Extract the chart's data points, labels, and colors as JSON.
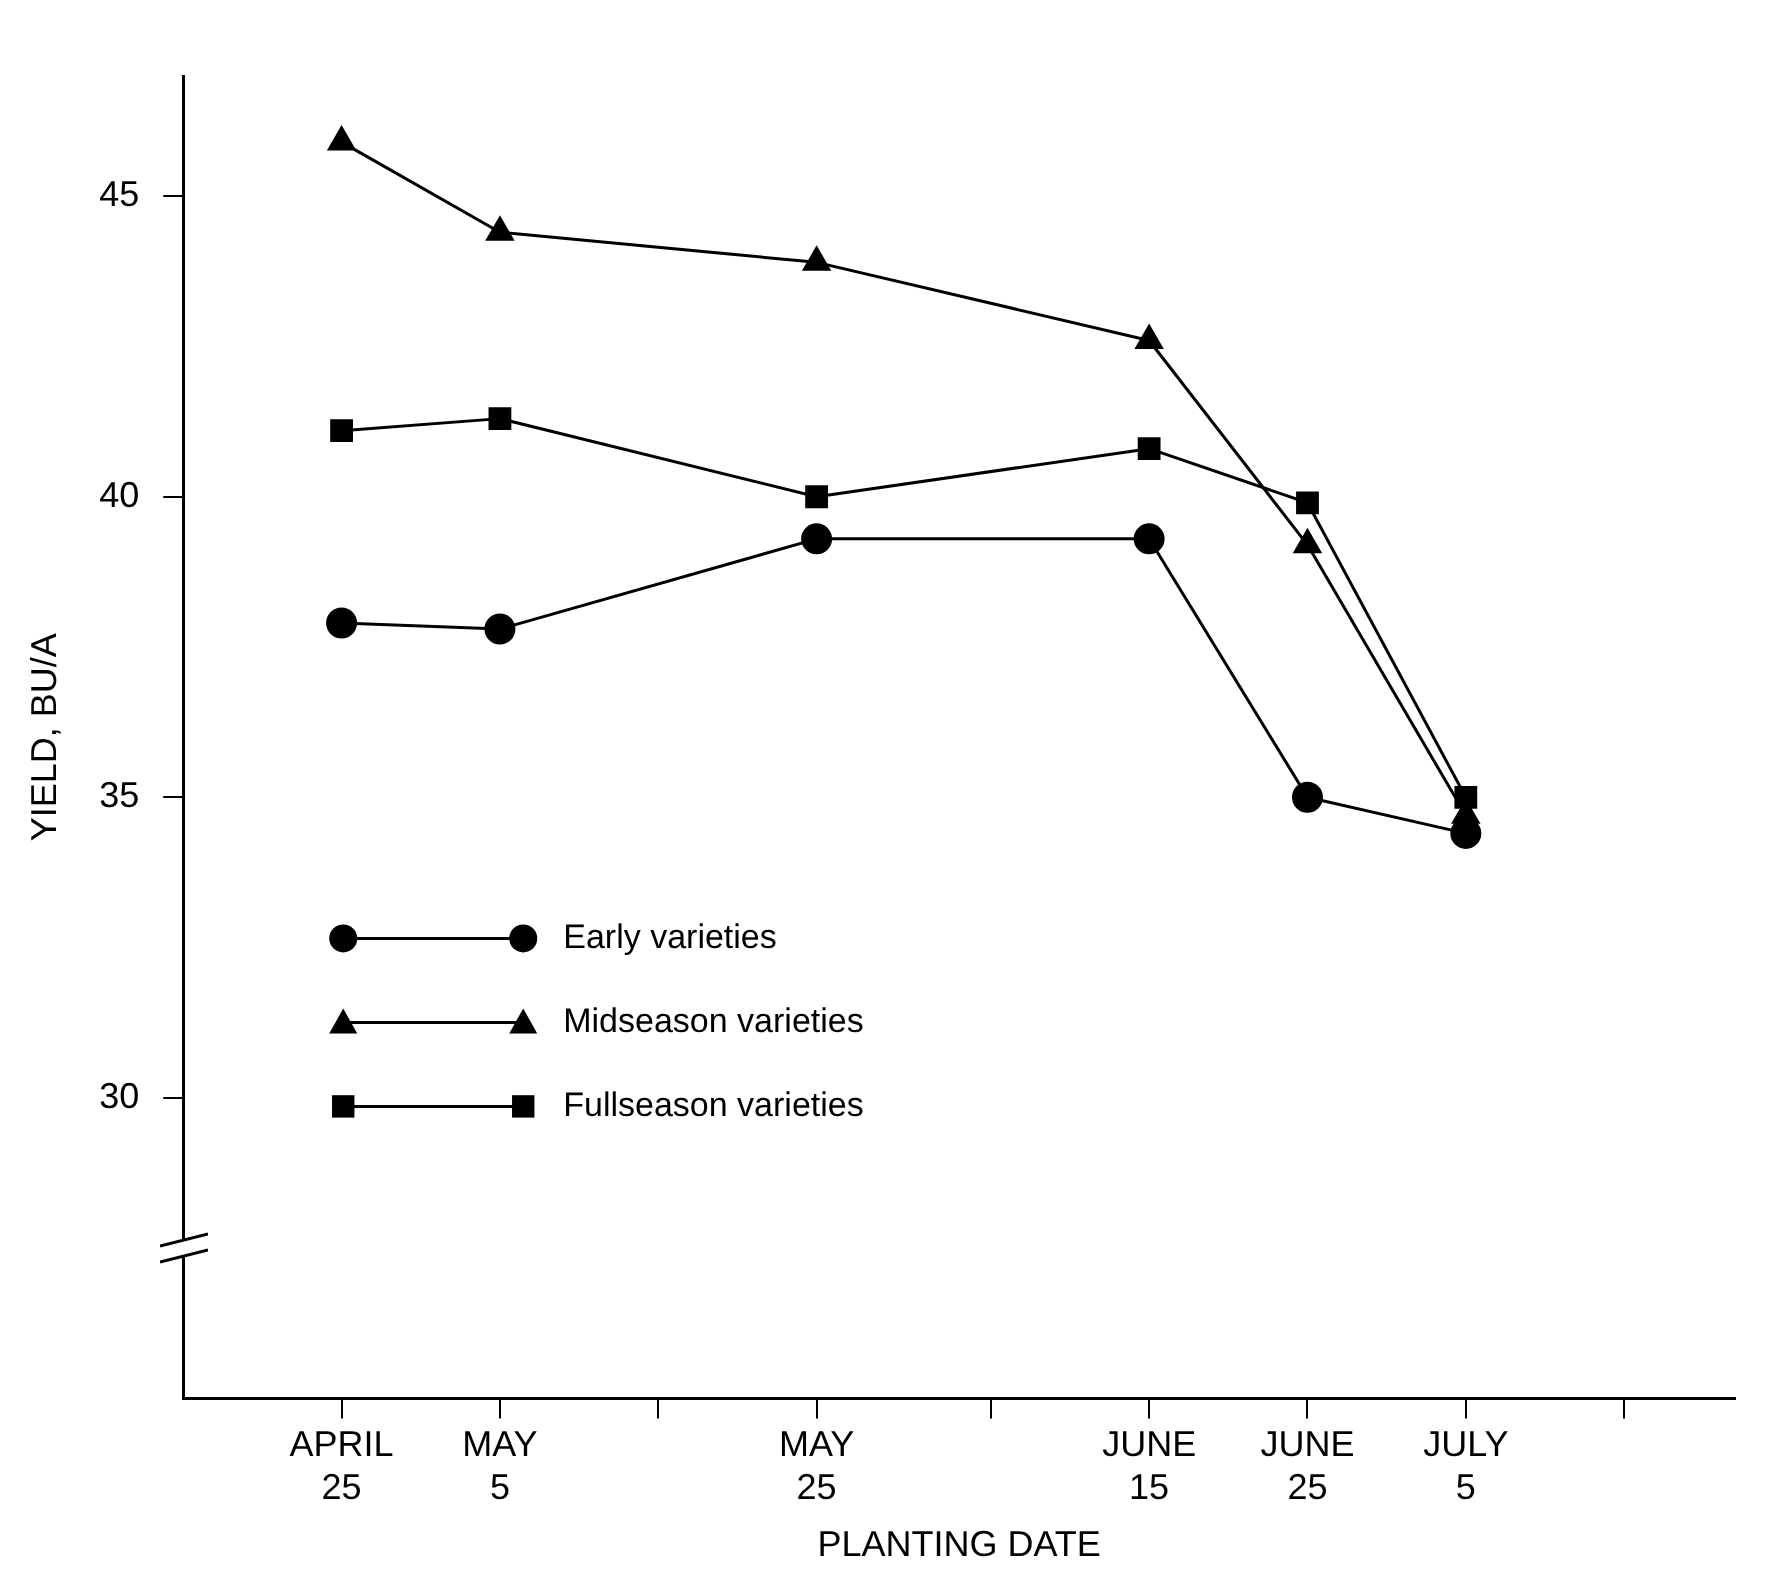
{
  "chart_data": {
    "type": "line",
    "xlabel": "PLANTING DATE",
    "ylabel": "YIELD, BU/A",
    "x": [
      "--04-25",
      "--05-05",
      "--05-25",
      "--06-15",
      "--06-25",
      "--07-05"
    ],
    "series": [
      {
        "name": "Early varieties",
        "color": "#000000",
        "marker": "circle",
        "values": [
          37.9,
          37.8,
          39.3,
          39.3,
          35.0,
          34.4
        ]
      },
      {
        "name": "Midseason varieties",
        "color": "#000000",
        "marker": "triangle",
        "values": [
          45.9,
          44.4,
          43.9,
          42.6,
          39.2,
          34.7
        ]
      },
      {
        "name": "Fullseason varieties",
        "color": "#000000",
        "marker": "square",
        "values": [
          41.1,
          41.3,
          40.0,
          40.8,
          39.9,
          35.0
        ]
      }
    ],
    "xlim": [
      "--04-15",
      "--07-22"
    ],
    "xticks": [
      {
        "value": "--04-25",
        "label": "APRIL 25"
      },
      {
        "value": "--05-05",
        "label": "MAY 5"
      },
      {
        "value": "--05-15",
        "label": null
      },
      {
        "value": "--05-25",
        "label": "MAY 25"
      },
      {
        "value": "--06-05",
        "label": null
      },
      {
        "value": "--06-15",
        "label": "JUNE 15"
      },
      {
        "value": "--06-25",
        "label": "JUNE 25"
      },
      {
        "value": "--07-05",
        "label": "JULY 5"
      },
      {
        "value": "--07-15",
        "label": null
      }
    ],
    "ylim": [
      25,
      47
    ],
    "yticks": [
      30,
      35,
      40,
      45
    ],
    "grid": false,
    "legend": "bottom left",
    "line_style": "solid"
  }
}
